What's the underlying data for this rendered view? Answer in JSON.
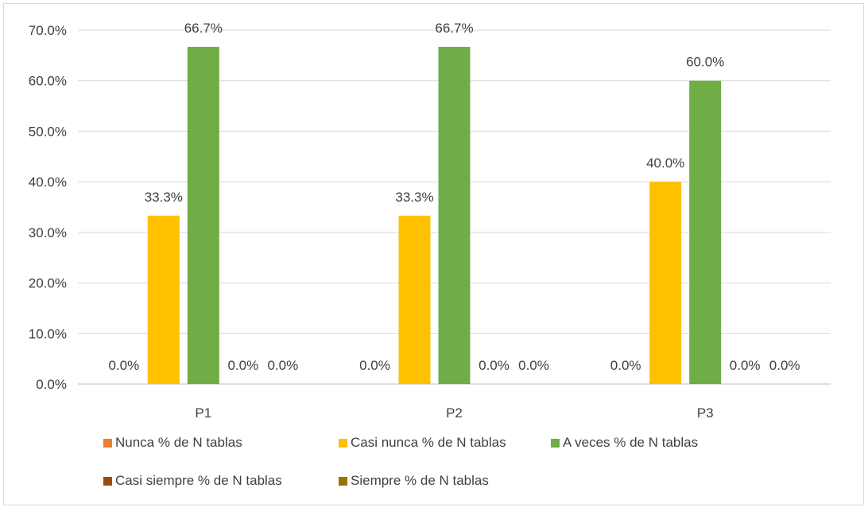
{
  "chart_data": {
    "type": "bar",
    "categories": [
      "P1",
      "P2",
      "P3"
    ],
    "series": [
      {
        "name": "Nunca % de N tablas",
        "color": "#ED7D31",
        "values": [
          0.0,
          0.0,
          0.0
        ],
        "labels": [
          "0.0%",
          "0.0%",
          "0.0%"
        ]
      },
      {
        "name": "Casi nunca % de N tablas",
        "color": "#FFC000",
        "values": [
          33.3,
          33.3,
          40.0
        ],
        "labels": [
          "33.3%",
          "33.3%",
          "40.0%"
        ]
      },
      {
        "name": "A veces % de N tablas",
        "color": "#70AD47",
        "values": [
          66.7,
          66.7,
          60.0
        ],
        "labels": [
          "66.7%",
          "66.7%",
          "60.0%"
        ]
      },
      {
        "name": "Casi siempre % de N tablas",
        "color": "#9E480E",
        "values": [
          0.0,
          0.0,
          0.0
        ],
        "labels": [
          "0.0%",
          "0.0%",
          "0.0%"
        ]
      },
      {
        "name": "Siempre % de N tablas",
        "color": "#997300",
        "values": [
          0.0,
          0.0,
          0.0
        ],
        "labels": [
          "0.0%",
          "0.0%",
          "0.0%"
        ]
      }
    ],
    "yticks": [
      "0.0%",
      "10.0%",
      "20.0%",
      "30.0%",
      "40.0%",
      "50.0%",
      "60.0%",
      "70.0%"
    ],
    "ylim": [
      0,
      70
    ],
    "grid": true,
    "legend_position": "bottom"
  }
}
